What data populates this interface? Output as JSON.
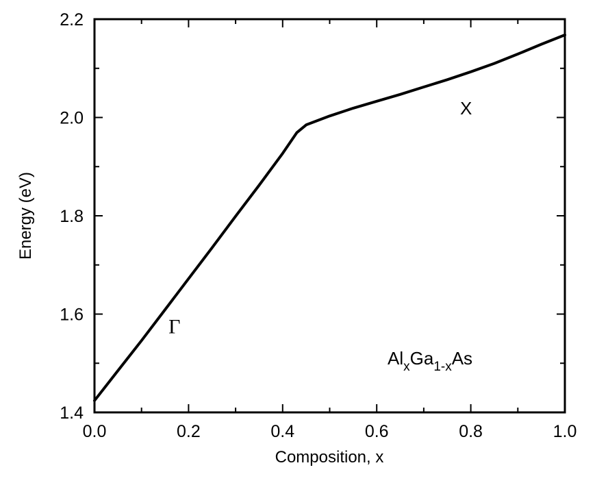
{
  "chart_data": {
    "type": "line",
    "xlabel": "Composition, x",
    "ylabel": "Energy (eV)",
    "xlim": [
      0.0,
      1.0
    ],
    "ylim": [
      1.4,
      2.2
    ],
    "xticks": [
      "0.0",
      "0.2",
      "0.4",
      "0.6",
      "0.8",
      "1.0"
    ],
    "yticks": [
      "1.4",
      "1.6",
      "1.8",
      "2.0",
      "2.2"
    ],
    "grid": false,
    "series": [
      {
        "x": [
          0.0,
          0.05,
          0.1,
          0.15,
          0.2,
          0.25,
          0.3,
          0.35,
          0.4,
          0.43,
          0.45,
          0.5,
          0.55,
          0.6,
          0.65,
          0.7,
          0.75,
          0.8,
          0.85,
          0.9,
          0.95,
          1.0
        ],
        "values": [
          1.424,
          1.485,
          1.546,
          1.609,
          1.672,
          1.735,
          1.799,
          1.862,
          1.927,
          1.969,
          1.985,
          2.003,
          2.019,
          2.033,
          2.047,
          2.062,
          2.077,
          2.093,
          2.11,
          2.129,
          2.149,
          2.168
        ],
        "color": "#000000"
      }
    ],
    "annotations": [
      {
        "text": "Γ",
        "x": 0.17,
        "y": 1.575
      },
      {
        "text": "X",
        "x": 0.79,
        "y": 2.02
      }
    ],
    "compound_label": {
      "base1": "Al",
      "sub1": "x",
      "base2": "Ga",
      "sub2": "1-x",
      "base3": "As"
    }
  }
}
